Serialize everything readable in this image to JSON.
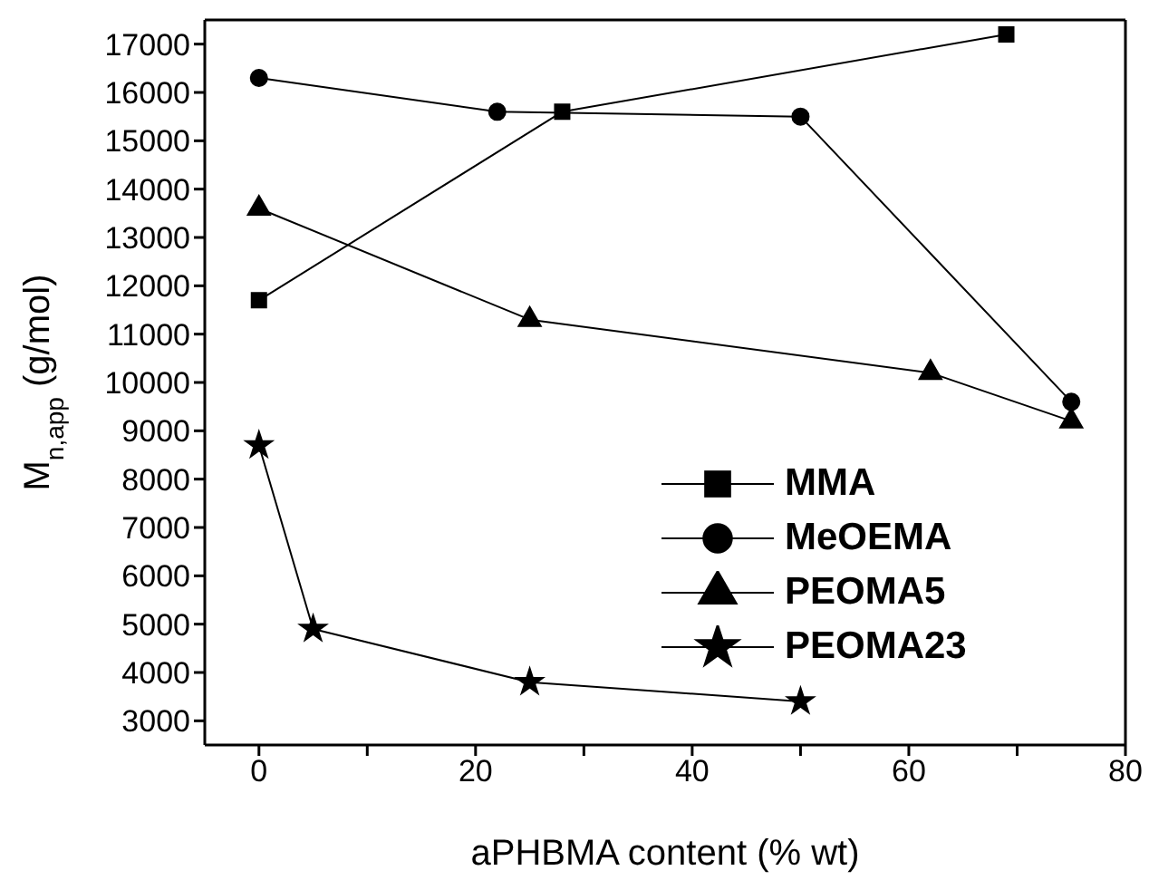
{
  "chart_data": {
    "type": "line",
    "xlabel": "aPHBMA content (% wt)",
    "ylabel": "M$_{n,app}$ (g/mol)",
    "xlim": [
      -5,
      80
    ],
    "xticks": [
      0,
      {
        "value": 10,
        "label": null
      },
      20,
      {
        "value": 30,
        "label": null
      },
      40,
      {
        "value": 50,
        "label": null
      },
      60,
      {
        "value": 70,
        "label": null
      },
      80
    ],
    "ylim": [
      2500,
      17500
    ],
    "yticks": [
      3000,
      4000,
      5000,
      6000,
      7000,
      8000,
      9000,
      10000,
      11000,
      12000,
      13000,
      14000,
      15000,
      16000,
      17000
    ],
    "series": [
      {
        "name": "MMA",
        "color": "#000000",
        "marker": "square",
        "x": [
          0,
          28,
          69
        ],
        "values": [
          11700,
          15600,
          17200
        ]
      },
      {
        "name": "MeOEMA",
        "color": "#000000",
        "marker": "circle",
        "x": [
          0,
          22,
          50,
          75
        ],
        "values": [
          16300,
          15600,
          15500,
          9600
        ]
      },
      {
        "name": "PEOMA5",
        "color": "#000000",
        "marker": "triangle",
        "x": [
          0,
          25,
          62,
          75
        ],
        "values": [
          13600,
          11300,
          10200,
          9200
        ]
      },
      {
        "name": "PEOMA23",
        "color": "#000000",
        "marker": "star",
        "x": [
          0,
          5,
          25,
          50
        ],
        "values": [
          8700,
          4900,
          3800,
          3400
        ]
      }
    ],
    "legend": "bottom right",
    "line_style": "solid"
  }
}
